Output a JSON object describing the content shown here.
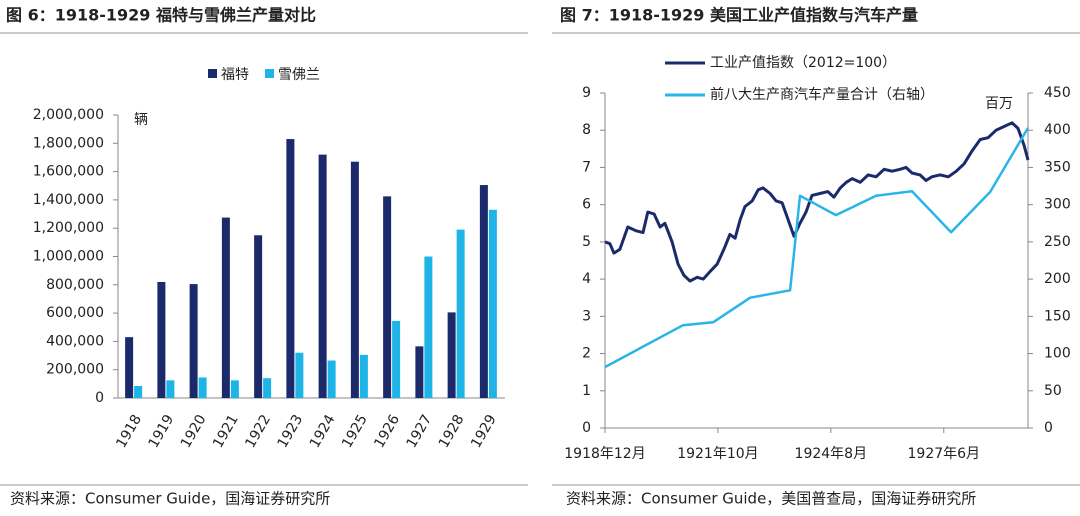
{
  "chart_data": [
    {
      "type": "bar",
      "title": "图 6：1918-1929 福特与雪佛兰产量对比",
      "y_label": "辆",
      "source": "资料来源：Consumer Guide，国海证券研究所",
      "categories": [
        "1918",
        "1919",
        "1920",
        "1921",
        "1922",
        "1923",
        "1924",
        "1925",
        "1926",
        "1927",
        "1928",
        "1929"
      ],
      "series": [
        {
          "name": "福特",
          "color": "#1b2a6b",
          "values": [
            430000,
            820000,
            805000,
            1275000,
            1150000,
            1830000,
            1720000,
            1670000,
            1425000,
            365000,
            605000,
            1505000
          ]
        },
        {
          "name": "雪佛兰",
          "color": "#1fb4e8",
          "values": [
            85000,
            125000,
            145000,
            125000,
            140000,
            320000,
            265000,
            305000,
            545000,
            1000000,
            1190000,
            1330000
          ]
        }
      ],
      "ylim": [
        0,
        2000000
      ],
      "yticks": [
        0,
        {
          "value": 200000,
          "label": "200,000"
        },
        {
          "value": 400000,
          "label": "400,000"
        },
        {
          "value": 600000,
          "label": "600,000"
        },
        {
          "value": 800000,
          "label": "800,000"
        },
        {
          "value": 1000000,
          "label": "1,000,000"
        },
        {
          "value": 1200000,
          "label": "1,200,000"
        },
        {
          "value": 1400000,
          "label": "1,400,000"
        },
        {
          "value": 1600000,
          "label": "1,600,000"
        },
        {
          "value": 1800000,
          "label": "1,800,000"
        },
        {
          "value": 2000000,
          "label": "2,000,000"
        }
      ]
    },
    {
      "type": "line",
      "title": "图 7：1918-1929 美国工业产值指数与汽车产量",
      "y2_label": "百万",
      "source": "资料来源：Consumer Guide，美国普查局，国海证券研究所",
      "series": [
        {
          "name": "工业产值指数（2012=100）",
          "color": "#1b2a6b",
          "x": [
            1918.92,
            1919.04,
            1919.14,
            1919.29,
            1919.49,
            1919.69,
            1919.87,
            1919.99,
            1920.15,
            1920.3,
            1920.42,
            1920.6,
            1920.75,
            1920.9,
            1921.05,
            1921.23,
            1921.38,
            1921.55,
            1921.73,
            1921.9,
            1922.05,
            1922.18,
            1922.31,
            1922.43,
            1922.61,
            1922.76,
            1922.88,
            1923.06,
            1923.21,
            1923.36,
            1923.51,
            1923.66,
            1923.81,
            1923.96,
            1924.11,
            1924.31,
            1924.51,
            1924.66,
            1924.82,
            1924.97,
            1925.12,
            1925.32,
            1925.52,
            1925.72,
            1925.92,
            1926.12,
            1926.32,
            1926.47,
            1926.62,
            1926.82,
            1926.97,
            1927.12,
            1927.32,
            1927.53,
            1927.73,
            1927.93,
            1928.13,
            1928.33,
            1928.53,
            1928.73,
            1928.93,
            1929.13,
            1929.28,
            1929.43,
            1929.53
          ],
          "values": [
            5.0,
            4.95,
            4.7,
            4.8,
            5.4,
            5.3,
            5.25,
            5.8,
            5.75,
            5.4,
            5.5,
            5.0,
            4.4,
            4.1,
            3.95,
            4.05,
            4.0,
            4.2,
            4.4,
            4.8,
            5.2,
            5.1,
            5.6,
            5.95,
            6.1,
            6.4,
            6.45,
            6.3,
            6.1,
            6.05,
            5.6,
            5.15,
            5.5,
            5.8,
            6.25,
            6.3,
            6.35,
            6.2,
            6.45,
            6.6,
            6.7,
            6.6,
            6.8,
            6.75,
            6.95,
            6.9,
            6.95,
            7.0,
            6.85,
            6.8,
            6.65,
            6.75,
            6.8,
            6.75,
            6.9,
            7.1,
            7.45,
            7.75,
            7.8,
            8.0,
            8.1,
            8.2,
            8.05,
            7.6,
            7.2
          ]
        },
        {
          "name": "前八大生产商汽车产量合计（右轴）",
          "color": "#29b5e8",
          "axis": "y2",
          "x": [
            1918.92,
            1920.87,
            1921.63,
            1922.56,
            1923.56,
            1923.81,
            1924.71,
            1925.72,
            1926.62,
            1927.6,
            1928.58,
            1929.53
          ],
          "values": [
            82,
            138,
            142,
            175,
            185,
            312,
            286,
            312,
            318,
            263,
            317,
            403
          ]
        }
      ],
      "xlim": [
        1918.917,
        1929.53
      ],
      "xticks": [
        {
          "value": 1918.917,
          "label": "1918年12月"
        },
        {
          "value": 1921.75,
          "label": "1921年10月"
        },
        {
          "value": 1924.583,
          "label": "1924年8月"
        },
        {
          "value": 1927.417,
          "label": "1927年6月"
        }
      ],
      "ylim": [
        0,
        9
      ],
      "yticks": [
        0,
        1,
        2,
        3,
        4,
        5,
        6,
        7,
        8,
        9
      ],
      "y2lim": [
        0,
        450
      ],
      "y2ticks": [
        0,
        50,
        100,
        150,
        200,
        250,
        300,
        350,
        400,
        450
      ]
    }
  ]
}
